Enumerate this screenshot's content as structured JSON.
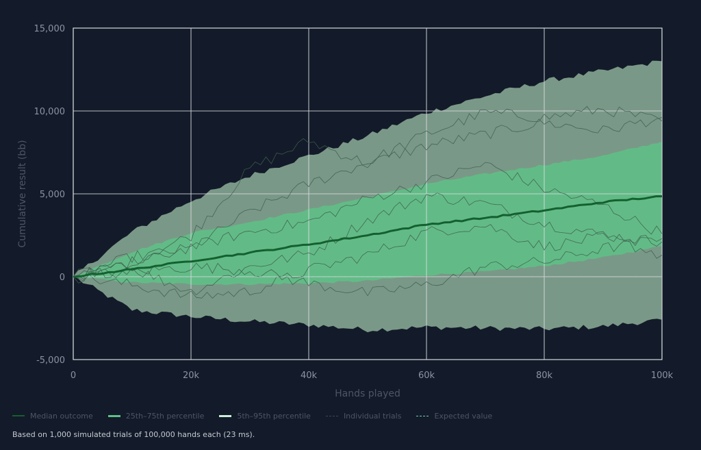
{
  "chart_data": {
    "type": "line",
    "title": "",
    "xlabel": "Hands played",
    "ylabel": "Cumulative result (bb)",
    "xlim": [
      0,
      100000
    ],
    "ylim": [
      -5000,
      15000
    ],
    "x_ticks": [
      0,
      20000,
      40000,
      60000,
      80000,
      100000
    ],
    "x_tick_labels": [
      "0",
      "20k",
      "40k",
      "60k",
      "80k",
      "100k"
    ],
    "y_ticks": [
      -5000,
      0,
      5000,
      10000,
      15000
    ],
    "y_tick_labels": [
      "-5,000",
      "0",
      "5,000",
      "10,000",
      "15,000"
    ],
    "grid": true,
    "legend_placement": "bottom-left",
    "colors": {
      "background": "#131a29",
      "median": "#14602f",
      "band_25_75": "#5fbf86",
      "band_5_95": "#7f9f8c",
      "grid": "#d6dae0",
      "expected": "#c8ccd2",
      "trials": "#3f5e50"
    },
    "series": [
      {
        "name": "Median outcome",
        "x": [
          0,
          10000,
          20000,
          30000,
          40000,
          50000,
          60000,
          70000,
          80000,
          90000,
          100000
        ],
        "y": [
          0,
          450,
          950,
          1450,
          1950,
          2500,
          3150,
          3550,
          4000,
          4500,
          4850
        ]
      },
      {
        "name": "25th–75th percentile",
        "x": [
          0,
          10000,
          20000,
          30000,
          40000,
          50000,
          60000,
          70000,
          80000,
          90000,
          100000
        ],
        "lower": [
          0,
          -350,
          -450,
          -450,
          -400,
          -250,
          100,
          300,
          650,
          1150,
          1850
        ],
        "upper": [
          0,
          1500,
          2650,
          3300,
          4050,
          4800,
          5600,
          6200,
          6750,
          7300,
          8150
        ]
      },
      {
        "name": "5th–95th percentile",
        "x": [
          0,
          10000,
          20000,
          30000,
          40000,
          50000,
          60000,
          70000,
          80000,
          90000,
          100000
        ],
        "lower": [
          0,
          -2000,
          -2400,
          -2700,
          -2900,
          -3200,
          -3050,
          -3100,
          -3150,
          -3000,
          -2600
        ],
        "upper": [
          0,
          2700,
          4600,
          6100,
          7300,
          8500,
          9900,
          10900,
          11800,
          12400,
          13000
        ]
      },
      {
        "name": "Individual trials",
        "x": [
          0,
          10000,
          20000,
          30000,
          40000,
          50000,
          60000,
          70000,
          80000,
          90000,
          100000
        ],
        "trials": [
          [
            0,
            900,
            2500,
            6500,
            8200,
            6800,
            7900,
            8600,
            9300,
            8800,
            9600
          ],
          [
            0,
            1200,
            1700,
            3900,
            5600,
            6900,
            8600,
            9900,
            9600,
            10100,
            9400
          ],
          [
            0,
            500,
            -900,
            600,
            1400,
            3400,
            4900,
            4400,
            3200,
            2500,
            2100
          ],
          [
            0,
            -500,
            -1200,
            -900,
            400,
            1300,
            2700,
            3100,
            1800,
            2400,
            1300
          ],
          [
            0,
            700,
            1800,
            2700,
            3300,
            4700,
            5700,
            6800,
            5300,
            4300,
            2600
          ],
          [
            0,
            300,
            600,
            400,
            -400,
            -1000,
            -500,
            600,
            900,
            1700,
            2300
          ]
        ]
      },
      {
        "name": "Expected value",
        "x": [
          0,
          100000
        ],
        "y": [
          0,
          0
        ]
      }
    ]
  },
  "legend": [
    {
      "label": "Median outcome"
    },
    {
      "label": "25th–75th percentile"
    },
    {
      "label": "5th–95th percentile"
    },
    {
      "label": "Individual trials"
    },
    {
      "label": "Expected value"
    }
  ],
  "footer": "Based on 1,000 simulated trials of 100,000 hands each (23 ms)."
}
